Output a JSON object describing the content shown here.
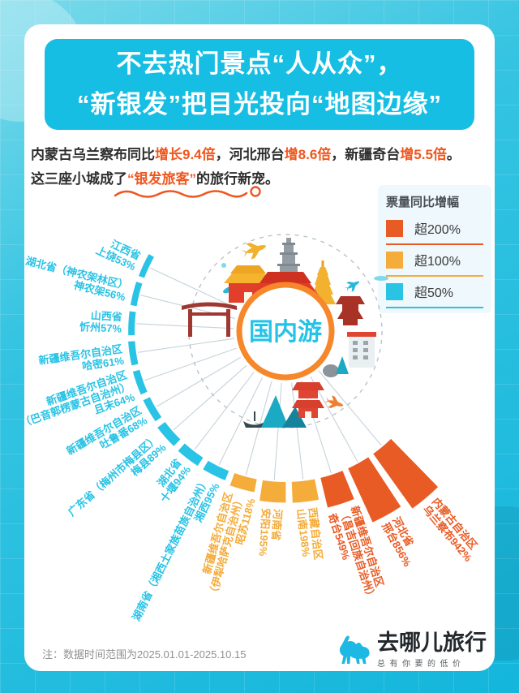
{
  "page": {
    "title_lines": [
      "不去热门景点“人从众”，",
      "“新银发”把目光投向“地图边缘”"
    ],
    "intro": {
      "line1": [
        {
          "text": "内蒙古乌兰察布同比",
          "highlight": false
        },
        {
          "text": "增长9.4倍",
          "highlight": true
        },
        {
          "text": "，河北邢台",
          "highlight": false
        },
        {
          "text": "增8.6倍",
          "highlight": true
        },
        {
          "text": "，新疆奇台",
          "highlight": false
        },
        {
          "text": "增5.5倍",
          "highlight": true
        },
        {
          "text": "。",
          "highlight": false
        }
      ],
      "line2": [
        {
          "text": "这三座小城成了",
          "highlight": false
        },
        {
          "text": "“银发旅客”",
          "highlight": true
        },
        {
          "text": "的旅行新宠。",
          "highlight": false
        }
      ]
    },
    "note": "注：数据时间范围为2025.01.01-2025.10.15",
    "logo": {
      "name": "去哪儿旅行",
      "tagline": "总有你要的低价"
    }
  },
  "colors": {
    "tier200": "#E95B24",
    "tier100": "#F4AC3B",
    "tier50": "#28C3E5",
    "header_cyan": "#16BEE3",
    "highlight_orange": "#F0561E",
    "ring_orange": "#F6872A",
    "connector_gray": "#C5D2D9"
  },
  "chart_data": {
    "type": "radial-bar",
    "center_label": "国内游",
    "unit": "% ticket volume YoY growth",
    "legend": {
      "title": "票量同比增幅",
      "items": [
        {
          "label": "超200%",
          "tier": "tier200"
        },
        {
          "label": "超100%",
          "tier": "tier100"
        },
        {
          "label": "超50%",
          "tier": "tier50"
        }
      ]
    },
    "items": [
      {
        "lines": [
          "江西省"
        ],
        "city_value": "上饶53%",
        "value": 53,
        "tier": "tier50"
      },
      {
        "lines": [
          "湖北省（神农架林区）"
        ],
        "city_value": "神农架56%",
        "value": 56,
        "tier": "tier50"
      },
      {
        "lines": [
          "山西省"
        ],
        "city_value": "忻州57%",
        "value": 57,
        "tier": "tier50"
      },
      {
        "lines": [
          "新疆维吾尔自治区"
        ],
        "city_value": "哈密61%",
        "value": 61,
        "tier": "tier50"
      },
      {
        "lines": [
          "新疆维吾尔自治区",
          "（巴音郭楞蒙古自治州）"
        ],
        "city_value": "且末64%",
        "value": 64,
        "tier": "tier50"
      },
      {
        "lines": [
          "新疆维吾尔自治区"
        ],
        "city_value": "吐鲁番68%",
        "value": 68,
        "tier": "tier50"
      },
      {
        "lines": [
          "广东省（梅州市梅县区）"
        ],
        "city_value": "梅县89%",
        "value": 89,
        "tier": "tier50"
      },
      {
        "lines": [
          "湖北省"
        ],
        "city_value": "十堰94%",
        "value": 94,
        "tier": "tier50"
      },
      {
        "lines": [
          "湖南省（湘西土家族苗族自治州）"
        ],
        "city_value": "湘西95%",
        "value": 95,
        "tier": "tier50"
      },
      {
        "lines": [
          "新疆维吾尔自治区",
          "（伊犁哈萨克自治州）"
        ],
        "city_value": "昭苏118%",
        "value": 118,
        "tier": "tier100"
      },
      {
        "lines": [
          "河南省"
        ],
        "city_value": "安阳195%",
        "value": 195,
        "tier": "tier100"
      },
      {
        "lines": [
          "西藏自治区"
        ],
        "city_value": "山南198%",
        "value": 198,
        "tier": "tier100"
      },
      {
        "lines": [
          "新疆维吾尔自治区",
          "（昌吉回族自治州）"
        ],
        "city_value": "奇台549%",
        "value": 549,
        "tier": "tier200"
      },
      {
        "lines": [
          "河北省"
        ],
        "city_value": "邢台856%",
        "value": 856,
        "tier": "tier200"
      },
      {
        "lines": [
          "内蒙古自治区"
        ],
        "city_value": "乌兰察布942%",
        "value": 942,
        "tier": "tier200"
      }
    ]
  }
}
